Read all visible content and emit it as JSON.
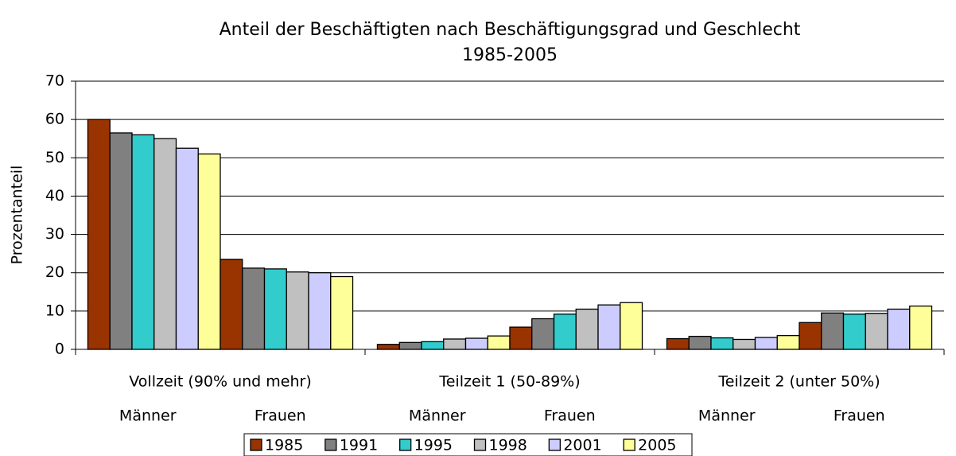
{
  "chart_data": {
    "type": "bar",
    "title": "Anteil der Beschäftigten nach Beschäftigungsgrad und Geschlecht",
    "subtitle": "1985-2005",
    "y_label": "Prozentanteil",
    "groups": [
      "Vollzeit (90% und mehr)",
      "Teilzeit 1 (50-89%)",
      "Teilzeit 2 (unter 50%)"
    ],
    "subgroups": [
      "Männer",
      "Frauen"
    ],
    "series": [
      {
        "name": "1985",
        "color": "#993300",
        "values": [
          60,
          23.5,
          1.3,
          5.8,
          2.8,
          7
        ]
      },
      {
        "name": "1991",
        "color": "#808080",
        "values": [
          56.5,
          21.2,
          1.8,
          8,
          3.4,
          9.5
        ]
      },
      {
        "name": "1995",
        "color": "#33cccc",
        "values": [
          56,
          21,
          2,
          9.2,
          3,
          9.2
        ]
      },
      {
        "name": "1998",
        "color": "#c0c0c0",
        "values": [
          55,
          20.2,
          2.7,
          10.5,
          2.6,
          9.4
        ]
      },
      {
        "name": "2001",
        "color": "#ccccff",
        "values": [
          52.5,
          20,
          2.9,
          11.6,
          3.1,
          10.5
        ]
      },
      {
        "name": "2005",
        "color": "#ffff99",
        "values": [
          51,
          19,
          3.5,
          12.2,
          3.6,
          11.3
        ]
      }
    ],
    "ylim": [
      0,
      70
    ],
    "yticks": [
      0,
      10,
      20,
      30,
      40,
      50,
      60,
      70
    ],
    "grid": true,
    "legend": "bottom"
  }
}
